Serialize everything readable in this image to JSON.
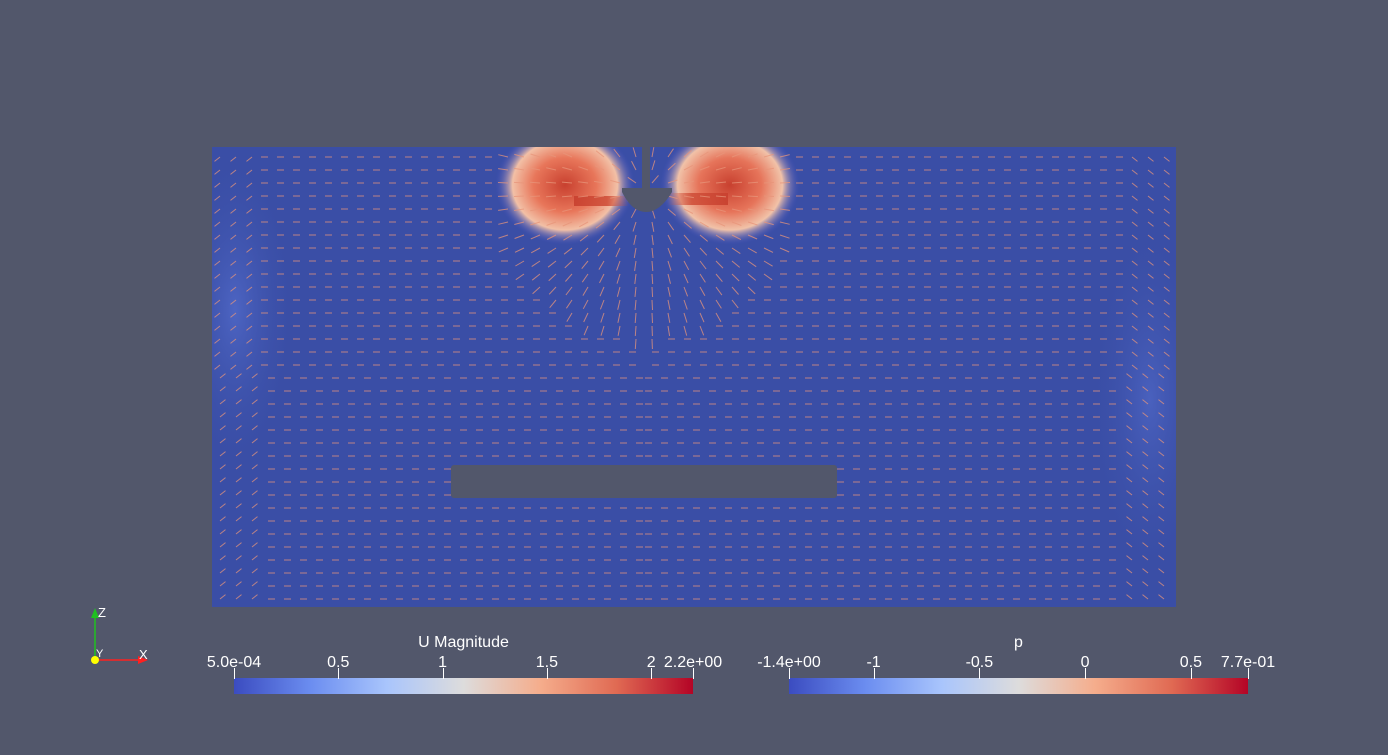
{
  "scene": {
    "background": "#52576b",
    "field_low_color": "#3b4cc0",
    "field_high_color": "#b40426",
    "glyph_color": "#e8957a",
    "obstacle_color": "#52576b"
  },
  "axes": {
    "x": "X",
    "y": "Y",
    "z": "Z",
    "x_color": "#ff2020",
    "y_color": "#ffff00",
    "z_color": "#20c020"
  },
  "colorbars": {
    "u": {
      "title": "U Magnitude",
      "ticks": [
        "5.0e-04",
        "0.5",
        "1",
        "1.5",
        "2",
        "2.2e+00"
      ],
      "tick_values": [
        0.0005,
        0.5,
        1,
        1.5,
        2,
        2.2
      ],
      "range": [
        0.0005,
        2.2
      ]
    },
    "p": {
      "title": "p",
      "ticks": [
        "-1.4e+00",
        "-1",
        "-0.5",
        "0",
        "0.5",
        "7.7e-01"
      ],
      "tick_values": [
        -1.4,
        -1,
        -0.5,
        0,
        0.5,
        0.77
      ],
      "range": [
        -1.4,
        0.77
      ]
    }
  }
}
